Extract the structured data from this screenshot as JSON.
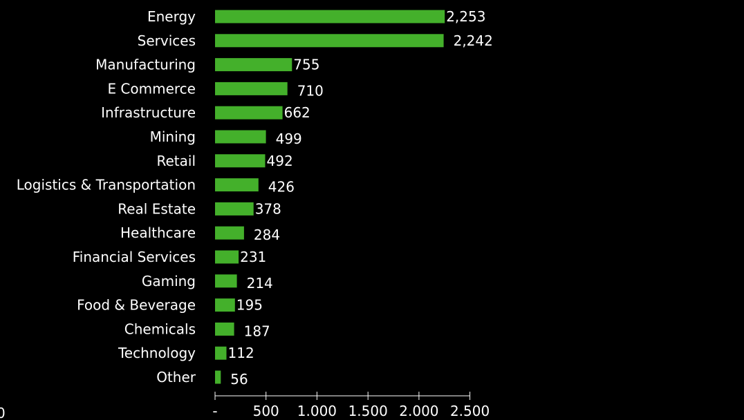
{
  "chart_data": {
    "type": "bar",
    "orientation": "horizontal",
    "categories": [
      "Energy",
      "Services",
      "Manufacturing",
      "E Commerce",
      "Infrastructure",
      "Mining",
      "Retail",
      "Logistics & Transportation",
      "Real Estate",
      "Healthcare",
      "Financial Services",
      "Gaming",
      "Food & Beverage",
      "Chemicals",
      "Technology",
      "Other"
    ],
    "values": [
      2253,
      2242,
      755,
      710,
      662,
      499,
      492,
      426,
      378,
      284,
      231,
      214,
      195,
      187,
      112,
      56
    ],
    "value_labels": [
      "2,253",
      "2,242",
      "755",
      "710",
      "662",
      "499",
      "492",
      "426",
      "378",
      "284",
      "231",
      "214",
      "195",
      "187",
      "112",
      "56"
    ],
    "xlim": [
      0,
      2500
    ],
    "xticks": [
      0,
      500,
      1000,
      1500,
      2000,
      2500
    ],
    "xtick_labels": [
      "-",
      "500",
      "1.000",
      "1.500",
      "2.000",
      "2.500"
    ],
    "corner_label": "0",
    "title": "",
    "xlabel": "",
    "ylabel": "",
    "grid": false,
    "legend": "none",
    "bar_color": "#44b02b",
    "background_color": "#000000",
    "text_color": "#ffffff"
  }
}
